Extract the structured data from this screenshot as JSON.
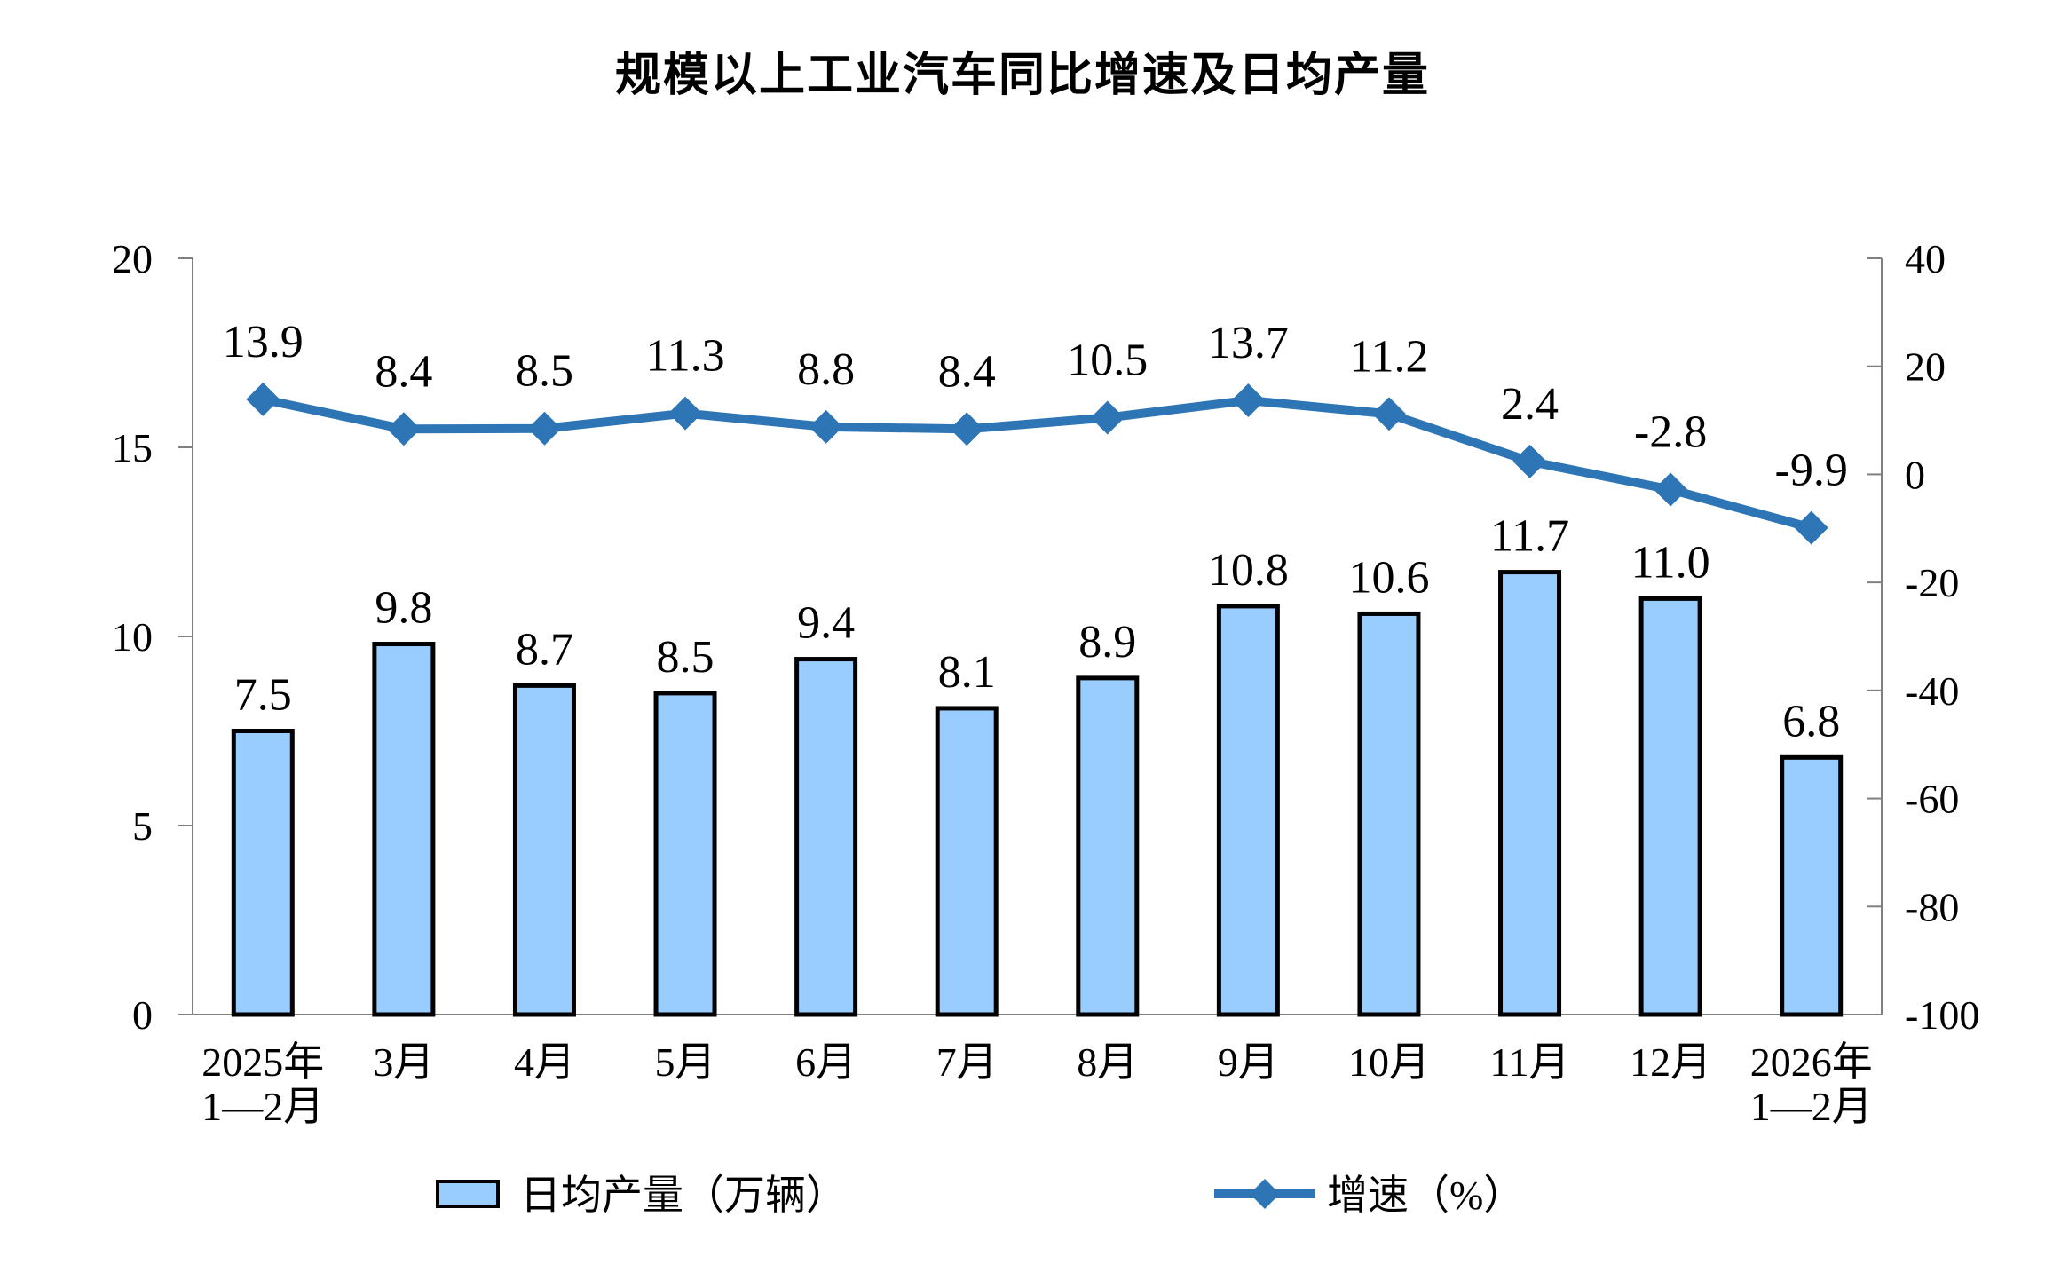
{
  "page": {
    "background": "#FFFFFF"
  },
  "chart_data": {
    "type": "bar",
    "title": "规模以上工业汽车同比增速及日均产量",
    "categories": [
      "2025年\n1—2月",
      "3月",
      "4月",
      "5月",
      "6月",
      "7月",
      "8月",
      "9月",
      "10月",
      "11月",
      "12月",
      "2026年\n1—2月"
    ],
    "series": [
      {
        "name": "日均产量（万辆）",
        "type": "bar",
        "axis": "left",
        "color": "#99CCFF",
        "border_color": "#000000",
        "values": [
          7.5,
          9.8,
          8.7,
          8.5,
          9.4,
          8.1,
          8.9,
          10.8,
          10.6,
          11.7,
          11.0,
          6.8
        ]
      },
      {
        "name": "增速（%）",
        "type": "line",
        "axis": "right",
        "color": "#2E75B6",
        "marker": "diamond",
        "values": [
          13.9,
          8.4,
          8.5,
          11.3,
          8.8,
          8.4,
          10.5,
          13.7,
          11.2,
          2.4,
          -2.8,
          -9.9
        ]
      }
    ],
    "left_axis": {
      "min": 0,
      "max": 20,
      "ticks": [
        0,
        5,
        10,
        15,
        20
      ]
    },
    "right_axis": {
      "min": -100,
      "max": 40,
      "ticks": [
        -100,
        -80,
        -60,
        -40,
        -20,
        0,
        20,
        40
      ]
    },
    "legend_position": "bottom",
    "grid": false,
    "axis_color": "#808080",
    "text_color": "#000000"
  }
}
